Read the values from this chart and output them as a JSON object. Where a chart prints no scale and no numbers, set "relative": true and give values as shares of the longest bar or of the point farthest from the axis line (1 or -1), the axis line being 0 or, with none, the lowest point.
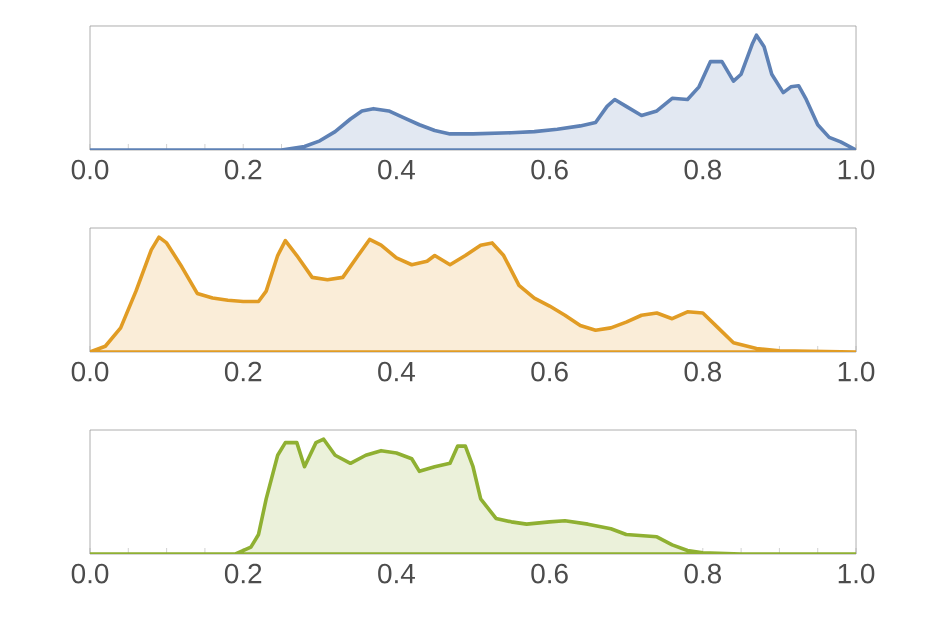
{
  "chart_data": [
    {
      "type": "area",
      "relative": true,
      "color": "#5e81b5",
      "xlim": [
        0,
        1
      ],
      "xticks": [
        {
          "value": 0,
          "label": "0.0"
        },
        {
          "value": 0.05,
          "label": null
        },
        {
          "value": 0.1,
          "label": null
        },
        {
          "value": 0.15,
          "label": null
        },
        {
          "value": 0.2,
          "label": "0.2"
        },
        {
          "value": 0.25,
          "label": null
        },
        {
          "value": 0.3,
          "label": null
        },
        {
          "value": 0.35,
          "label": null
        },
        {
          "value": 0.4,
          "label": "0.4"
        },
        {
          "value": 0.45,
          "label": null
        },
        {
          "value": 0.5,
          "label": null
        },
        {
          "value": 0.55,
          "label": null
        },
        {
          "value": 0.6,
          "label": "0.6"
        },
        {
          "value": 0.65,
          "label": null
        },
        {
          "value": 0.7,
          "label": null
        },
        {
          "value": 0.75,
          "label": null
        },
        {
          "value": 0.8,
          "label": "0.8"
        },
        {
          "value": 0.85,
          "label": null
        },
        {
          "value": 0.9,
          "label": null
        },
        {
          "value": 0.95,
          "label": null
        },
        {
          "value": 1,
          "label": "1.0"
        }
      ],
      "x": [
        0,
        0.25,
        0.28,
        0.3,
        0.32,
        0.34,
        0.355,
        0.37,
        0.39,
        0.41,
        0.43,
        0.45,
        0.47,
        0.5,
        0.55,
        0.58,
        0.61,
        0.64,
        0.66,
        0.675,
        0.685,
        0.7,
        0.72,
        0.74,
        0.76,
        0.78,
        0.795,
        0.81,
        0.825,
        0.84,
        0.85,
        0.865,
        0.87,
        0.88,
        0.89,
        0.905,
        0.915,
        0.925,
        0.935,
        0.95,
        0.965,
        0.98,
        1.0
      ],
      "values": [
        0,
        0,
        0.03,
        0.08,
        0.16,
        0.27,
        0.34,
        0.36,
        0.34,
        0.28,
        0.22,
        0.17,
        0.14,
        0.14,
        0.15,
        0.16,
        0.18,
        0.21,
        0.24,
        0.38,
        0.44,
        0.38,
        0.3,
        0.34,
        0.45,
        0.44,
        0.55,
        0.77,
        0.77,
        0.6,
        0.66,
        0.93,
        1,
        0.9,
        0.66,
        0.5,
        0.55,
        0.56,
        0.44,
        0.22,
        0.11,
        0.07,
        0
      ]
    },
    {
      "type": "area",
      "relative": true,
      "color": "#e19c24",
      "xlim": [
        0,
        1
      ],
      "xticks": [
        {
          "value": 0,
          "label": "0.0"
        },
        {
          "value": 0.05,
          "label": null
        },
        {
          "value": 0.1,
          "label": null
        },
        {
          "value": 0.15,
          "label": null
        },
        {
          "value": 0.2,
          "label": "0.2"
        },
        {
          "value": 0.25,
          "label": null
        },
        {
          "value": 0.3,
          "label": null
        },
        {
          "value": 0.35,
          "label": null
        },
        {
          "value": 0.4,
          "label": "0.4"
        },
        {
          "value": 0.45,
          "label": null
        },
        {
          "value": 0.5,
          "label": null
        },
        {
          "value": 0.55,
          "label": null
        },
        {
          "value": 0.6,
          "label": "0.6"
        },
        {
          "value": 0.65,
          "label": null
        },
        {
          "value": 0.7,
          "label": null
        },
        {
          "value": 0.75,
          "label": null
        },
        {
          "value": 0.8,
          "label": "0.8"
        },
        {
          "value": 0.85,
          "label": null
        },
        {
          "value": 0.9,
          "label": null
        },
        {
          "value": 0.95,
          "label": null
        },
        {
          "value": 1,
          "label": "1.0"
        }
      ],
      "x": [
        0,
        0.02,
        0.04,
        0.06,
        0.08,
        0.09,
        0.1,
        0.12,
        0.14,
        0.16,
        0.18,
        0.2,
        0.22,
        0.23,
        0.245,
        0.255,
        0.27,
        0.29,
        0.31,
        0.33,
        0.35,
        0.365,
        0.38,
        0.4,
        0.42,
        0.44,
        0.45,
        0.47,
        0.49,
        0.51,
        0.525,
        0.54,
        0.56,
        0.58,
        0.6,
        0.62,
        0.64,
        0.66,
        0.68,
        0.7,
        0.72,
        0.74,
        0.76,
        0.78,
        0.8,
        0.82,
        0.84,
        0.87,
        0.9,
        1.0
      ],
      "values": [
        0,
        0.05,
        0.21,
        0.53,
        0.89,
        1,
        0.95,
        0.74,
        0.51,
        0.47,
        0.45,
        0.44,
        0.44,
        0.53,
        0.84,
        0.97,
        0.84,
        0.65,
        0.63,
        0.65,
        0.84,
        0.98,
        0.93,
        0.82,
        0.76,
        0.79,
        0.84,
        0.76,
        0.84,
        0.93,
        0.95,
        0.84,
        0.58,
        0.47,
        0.4,
        0.32,
        0.23,
        0.19,
        0.21,
        0.26,
        0.32,
        0.34,
        0.29,
        0.35,
        0.34,
        0.21,
        0.08,
        0.03,
        0.01,
        0
      ]
    },
    {
      "type": "area",
      "relative": true,
      "color": "#8fb032",
      "xlim": [
        0,
        1
      ],
      "xticks": [
        {
          "value": 0,
          "label": "0.0"
        },
        {
          "value": 0.05,
          "label": null
        },
        {
          "value": 0.1,
          "label": null
        },
        {
          "value": 0.15,
          "label": null
        },
        {
          "value": 0.2,
          "label": "0.2"
        },
        {
          "value": 0.25,
          "label": null
        },
        {
          "value": 0.3,
          "label": null
        },
        {
          "value": 0.35,
          "label": null
        },
        {
          "value": 0.4,
          "label": "0.4"
        },
        {
          "value": 0.45,
          "label": null
        },
        {
          "value": 0.5,
          "label": null
        },
        {
          "value": 0.55,
          "label": null
        },
        {
          "value": 0.6,
          "label": "0.6"
        },
        {
          "value": 0.65,
          "label": null
        },
        {
          "value": 0.7,
          "label": null
        },
        {
          "value": 0.75,
          "label": null
        },
        {
          "value": 0.8,
          "label": "0.8"
        },
        {
          "value": 0.85,
          "label": null
        },
        {
          "value": 0.9,
          "label": null
        },
        {
          "value": 0.95,
          "label": null
        },
        {
          "value": 1,
          "label": "1.0"
        }
      ],
      "x": [
        0,
        0.19,
        0.21,
        0.22,
        0.23,
        0.245,
        0.255,
        0.27,
        0.28,
        0.295,
        0.305,
        0.32,
        0.34,
        0.36,
        0.38,
        0.4,
        0.42,
        0.43,
        0.45,
        0.47,
        0.48,
        0.49,
        0.5,
        0.51,
        0.53,
        0.55,
        0.57,
        0.6,
        0.62,
        0.65,
        0.68,
        0.7,
        0.72,
        0.74,
        0.76,
        0.78,
        0.8,
        0.85,
        1.0
      ],
      "values": [
        0,
        0,
        0.06,
        0.17,
        0.48,
        0.86,
        0.97,
        0.97,
        0.76,
        0.97,
        1,
        0.86,
        0.79,
        0.86,
        0.9,
        0.88,
        0.83,
        0.72,
        0.76,
        0.79,
        0.94,
        0.94,
        0.76,
        0.48,
        0.31,
        0.28,
        0.26,
        0.28,
        0.29,
        0.26,
        0.22,
        0.17,
        0.16,
        0.15,
        0.08,
        0.03,
        0.01,
        0,
        0
      ]
    }
  ]
}
